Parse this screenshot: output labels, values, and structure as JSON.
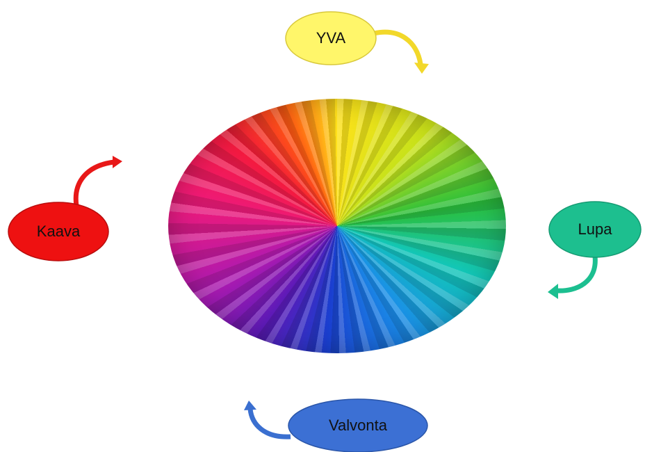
{
  "nodes": [
    {
      "label": "YVA"
    },
    {
      "label": "Lupa"
    },
    {
      "label": "Valvonta"
    },
    {
      "label": "Kaava"
    }
  ]
}
